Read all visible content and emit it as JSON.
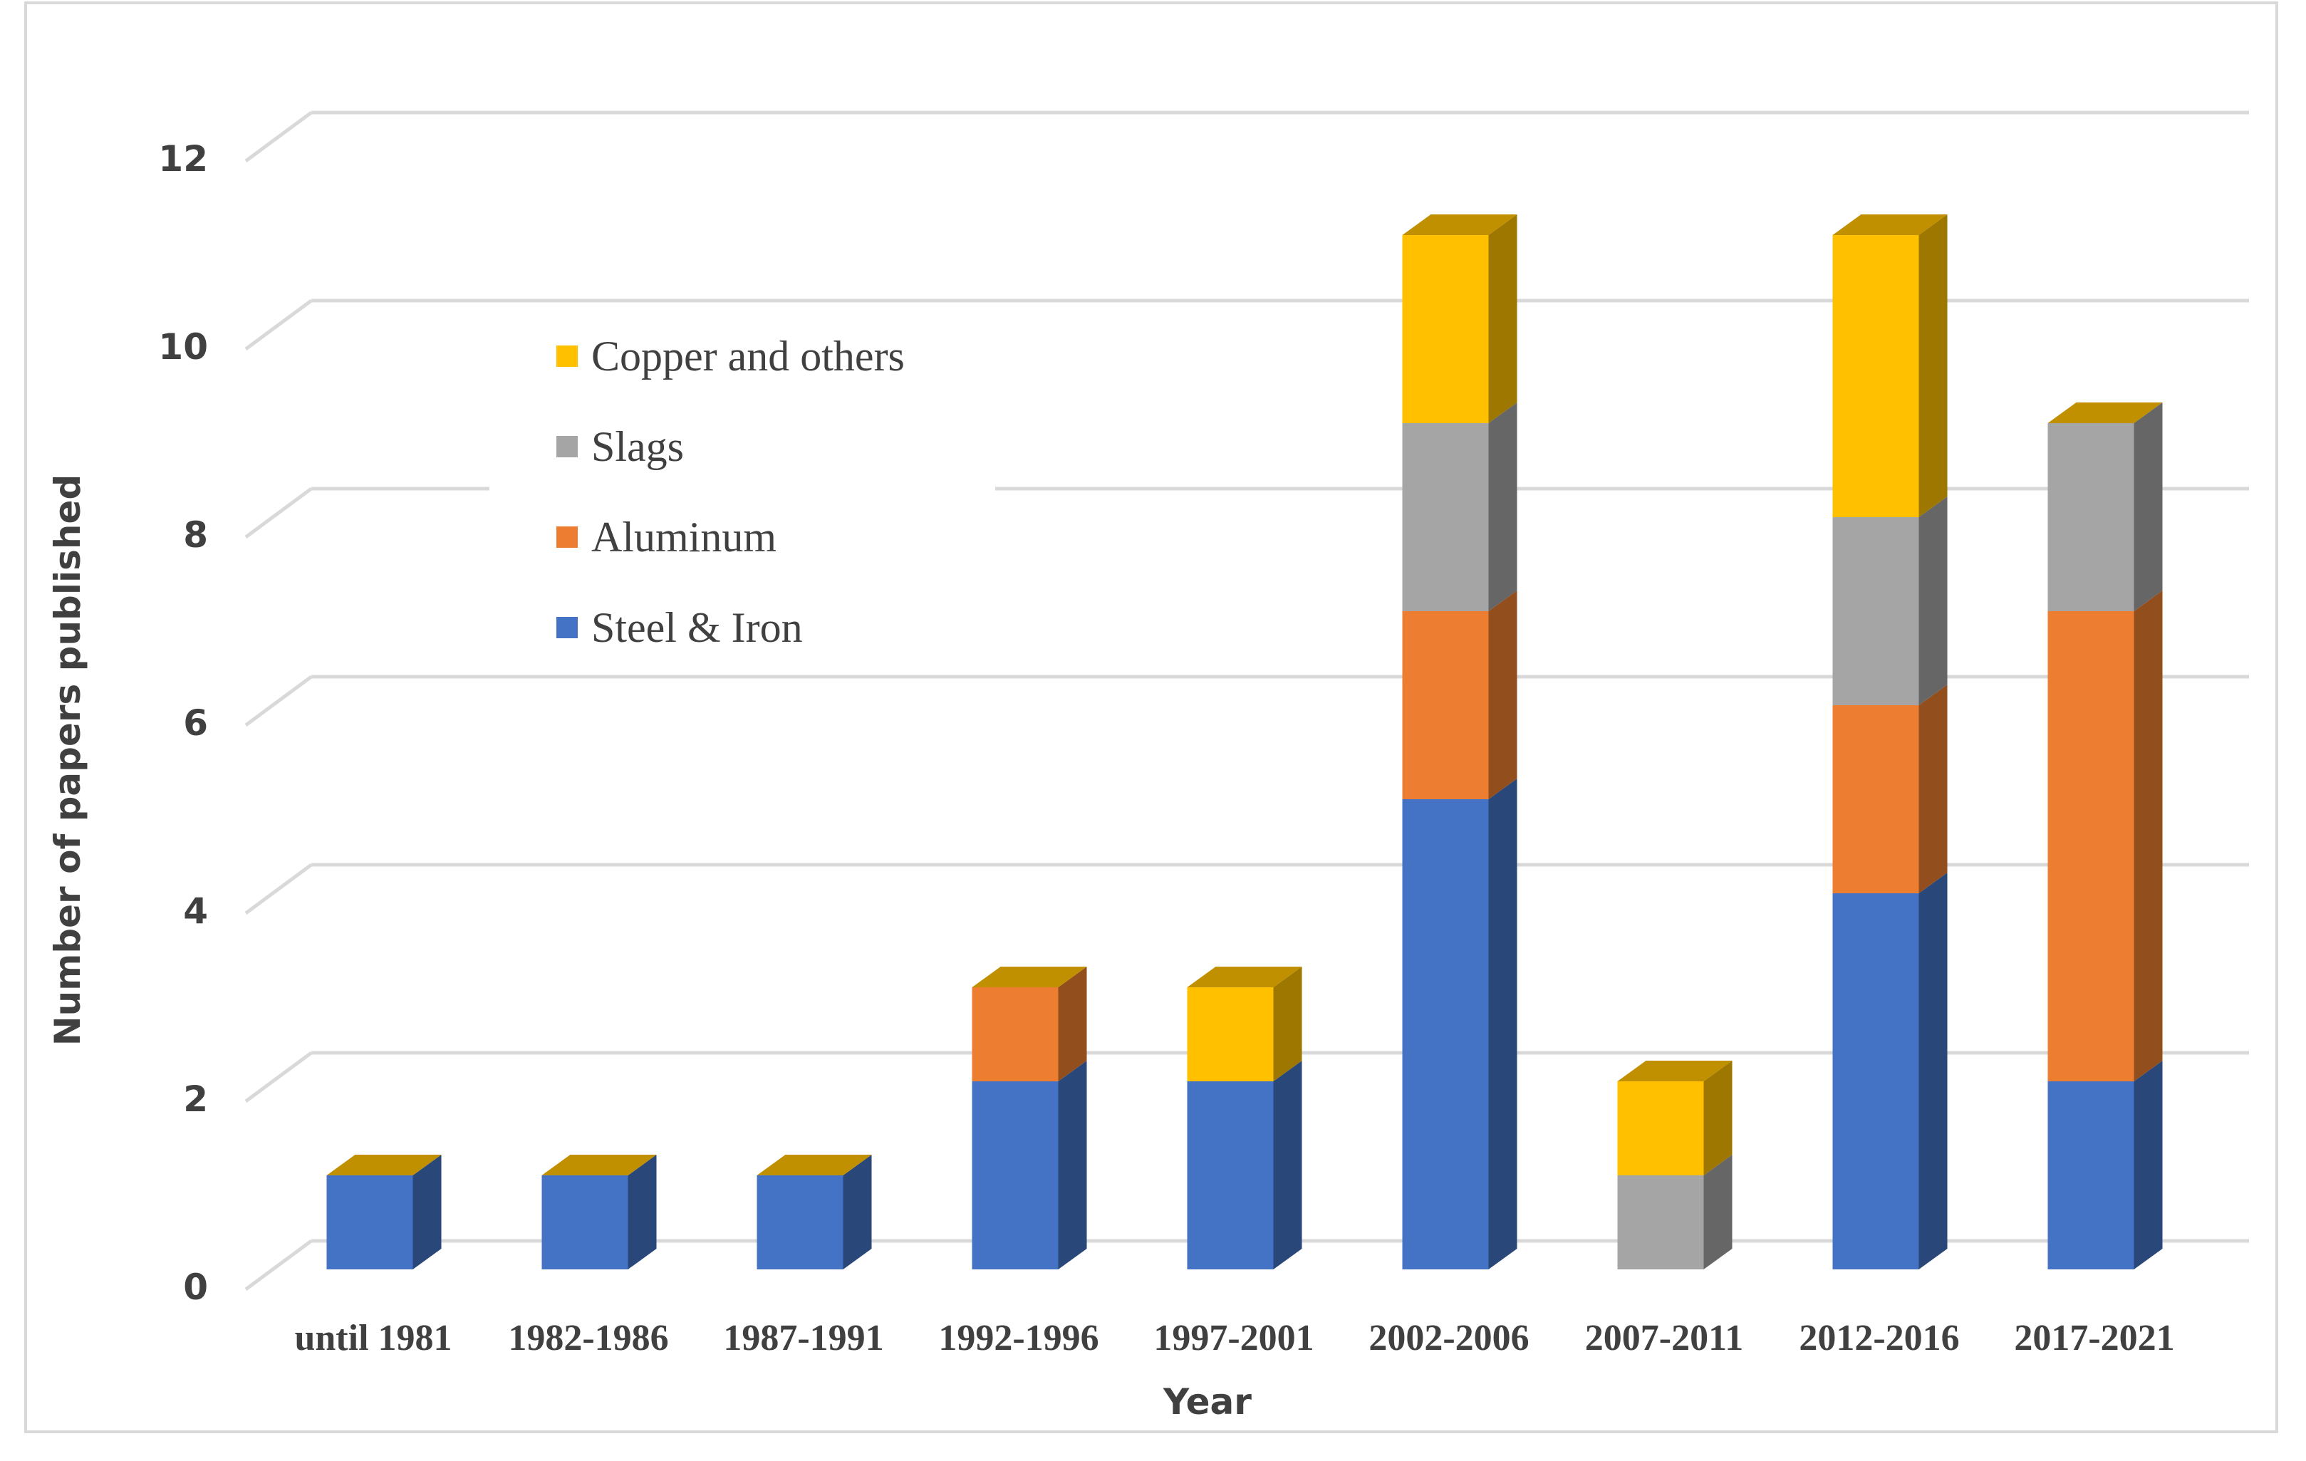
{
  "chart_data": {
    "type": "bar",
    "stacked": true,
    "style": "3d",
    "title": "",
    "xlabel": "Year",
    "ylabel": "Number of papers published",
    "ylim": [
      0,
      12
    ],
    "yticks": [
      0,
      2,
      4,
      6,
      8,
      10,
      12
    ],
    "grid": true,
    "legend_position": "top-left",
    "categories": [
      "until 1981",
      "1982-1986",
      "1987-1991",
      "1992-1996",
      "1997-2001",
      "2002-2006",
      "2007-2011",
      "2012-2016",
      "2017-2021"
    ],
    "series": [
      {
        "name": "Steel & Iron",
        "color": "#4472C4",
        "values": [
          1,
          1,
          1,
          2,
          2,
          5,
          0,
          4,
          2
        ]
      },
      {
        "name": "Aluminum",
        "color": "#ED7D31",
        "values": [
          0,
          0,
          0,
          1,
          0,
          2,
          0,
          2,
          5
        ]
      },
      {
        "name": "Slags",
        "color": "#A5A5A5",
        "values": [
          0,
          0,
          0,
          0,
          0,
          2,
          1,
          2,
          2
        ]
      },
      {
        "name": "Copper and others",
        "color": "#FFC000",
        "values": [
          0,
          0,
          0,
          0,
          1,
          2,
          1,
          3,
          0
        ]
      }
    ],
    "legend_order": [
      "Copper and others",
      "Slags",
      "Aluminum",
      "Steel & Iron"
    ]
  }
}
